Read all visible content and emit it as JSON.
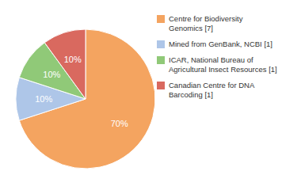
{
  "chart_data": {
    "type": "pie",
    "categories": [
      "Centre for Biodiversity\nGenomics [7]",
      "Mined from GenBank, NCBI [1]",
      "ICAR, National Bureau of\nAgricultural Insect Resources [1]",
      "Canadian Centre for DNA\nBarcoding [1]"
    ],
    "values": [
      70,
      10,
      10,
      10
    ],
    "value_labels": [
      "70%",
      "10%",
      "10%",
      "10%"
    ],
    "colors": [
      "#f4a460",
      "#aec6e8",
      "#90c978",
      "#d9695f"
    ],
    "data_labels": true,
    "legend": "right"
  }
}
